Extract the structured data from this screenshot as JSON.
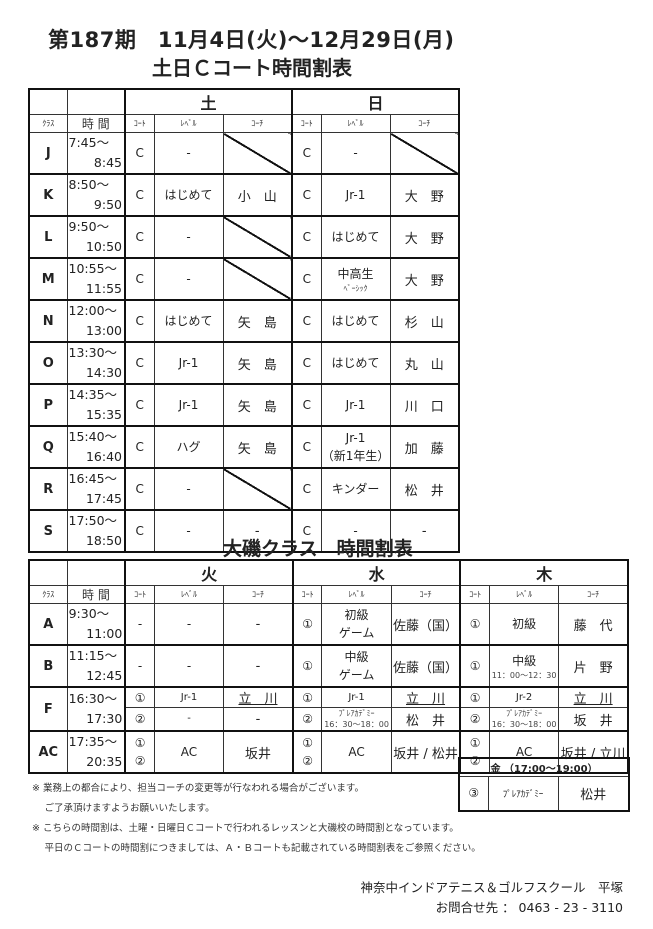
{
  "title": {
    "line1": "第187期　11月4日(火)～12月29日(月)",
    "line2": "土日Ｃコート時間割表",
    "line3": "大磯クラス　時間割表"
  },
  "subheaders": {
    "class": "ｸﾗｽ",
    "time": "時 間",
    "court": "ｺｰﾄ",
    "level": "ﾚﾍﾞﾙ",
    "coach": "ｺｰﾁ"
  },
  "weekend_table": {
    "days": [
      "土",
      "日"
    ],
    "rows": [
      {
        "cls": "J",
        "t1": "7:45～",
        "t2": "8:45",
        "days": [
          {
            "court": "C",
            "level": "-",
            "coach": null
          },
          {
            "court": "C",
            "level": "-",
            "coach": null
          }
        ]
      },
      {
        "cls": "K",
        "t1": "8:50～",
        "t2": "9:50",
        "days": [
          {
            "court": "C",
            "level": "はじめて",
            "coach": "小　山"
          },
          {
            "court": "C",
            "level": "Jr-1",
            "coach": "大　野"
          }
        ]
      },
      {
        "cls": "L",
        "t1": "9:50～",
        "t2": "10:50",
        "days": [
          {
            "court": "C",
            "level": "-",
            "coach": null
          },
          {
            "court": "C",
            "level": "はじめて",
            "coach": "大　野"
          }
        ]
      },
      {
        "cls": "M",
        "t1": "10:55～",
        "t2": "11:55",
        "days": [
          {
            "court": "C",
            "level": "-",
            "coach": null
          },
          {
            "court": "C",
            "level": "中高生",
            "level_note": "ﾍﾞｰｼｯｸ",
            "coach": "大　野"
          }
        ]
      },
      {
        "cls": "N",
        "t1": "12:00～",
        "t2": "13:00",
        "days": [
          {
            "court": "C",
            "level": "はじめて",
            "coach": "矢　島"
          },
          {
            "court": "C",
            "level": "はじめて",
            "coach": "杉　山"
          }
        ]
      },
      {
        "cls": "O",
        "t1": "13:30～",
        "t2": "14:30",
        "days": [
          {
            "court": "C",
            "level": "Jr-1",
            "coach": "矢　島"
          },
          {
            "court": "C",
            "level": "はじめて",
            "coach": "丸　山"
          }
        ]
      },
      {
        "cls": "P",
        "t1": "14:35～",
        "t2": "15:35",
        "days": [
          {
            "court": "C",
            "level": "Jr-1",
            "coach": "矢　島"
          },
          {
            "court": "C",
            "level": "Jr-1",
            "coach": "川　口"
          }
        ]
      },
      {
        "cls": "Q",
        "t1": "15:40～",
        "t2": "16:40",
        "days": [
          {
            "court": "C",
            "level": "ハグ",
            "coach": "矢　島"
          },
          {
            "court": "C",
            "level": "Jr-1",
            "level_line2": "（新1年生）",
            "coach": "加　藤"
          }
        ]
      },
      {
        "cls": "R",
        "t1": "16:45～",
        "t2": "17:45",
        "days": [
          {
            "court": "C",
            "level": "-",
            "coach": null
          },
          {
            "court": "C",
            "level": "キンダー",
            "coach": "松　井"
          }
        ]
      },
      {
        "cls": "S",
        "t1": "17:50～",
        "t2": "18:50",
        "days": [
          {
            "court": "C",
            "level": "-",
            "coach": "-"
          },
          {
            "court": "C",
            "level": "-",
            "coach": "-"
          }
        ]
      }
    ]
  },
  "oiso_table": {
    "days": [
      "火",
      "水",
      "木"
    ],
    "rows": [
      {
        "cls": "A",
        "t1": "9:30～",
        "t2": "11:00",
        "subs": [
          {
            "days": [
              {
                "court": "-",
                "level": "-",
                "coach": "-"
              },
              {
                "court": "①",
                "level": "初級",
                "level_line2": "ゲーム",
                "coach": "佐藤（国）"
              },
              {
                "court": "①",
                "level": "初級",
                "coach": "藤　代"
              }
            ]
          }
        ]
      },
      {
        "cls": "B",
        "t1": "11:15～",
        "t2": "12:45",
        "subs": [
          {
            "days": [
              {
                "court": "-",
                "level": "-",
                "coach": "-"
              },
              {
                "court": "①",
                "level": "中級",
                "level_line2": "ゲーム",
                "coach": "佐藤（国）"
              },
              {
                "court": "①",
                "level": "中級",
                "level_note": "11：00～12：30",
                "coach": "片　野"
              }
            ]
          }
        ]
      },
      {
        "cls": "F",
        "t1": "16:30～",
        "t2": "17:30",
        "subs": [
          {
            "days": [
              {
                "court": "①",
                "level": "Jr-1",
                "coach": "立　川",
                "coach_underline": true
              },
              {
                "court": "①",
                "level": "Jr-1",
                "coach": "立　川",
                "coach_underline": true
              },
              {
                "court": "①",
                "level": "Jr-2",
                "coach": "立　川",
                "coach_underline": true
              }
            ]
          },
          {
            "days": [
              {
                "court": "②",
                "level": "-",
                "coach": "-"
              },
              {
                "court": "②",
                "level_small": "ﾌﾟﾚｱｶﾃﾞﾐｰ",
                "level_note": "16：30～18：00",
                "coach": "松　井"
              },
              {
                "court": "②",
                "level_small": "ﾌﾟﾚｱｶﾃﾞﾐｰ",
                "level_note": "16：30～18：00",
                "coach": "坂　井"
              }
            ]
          }
        ]
      },
      {
        "cls": "AC",
        "t1": "17:35～",
        "t2": "20:35",
        "subs": [
          {
            "days": [
              {
                "court": "①",
                "court2": "②",
                "level": "AC",
                "coach": "坂井"
              },
              {
                "court": "①",
                "court2": "②",
                "level": "AC",
                "coach": "坂井 / 松井"
              },
              {
                "court": "①",
                "court2": "②",
                "level": "AC",
                "coach": "坂井 / 立川"
              }
            ]
          }
        ]
      }
    ]
  },
  "friday": {
    "header": "金 （17:00～19:00）",
    "court": "③",
    "level": "ﾌﾟﾚｱｶﾃﾞﾐｰ",
    "coach": "松井"
  },
  "notes": [
    "※ 業務上の都合により、担当コーチの変更等が行なわれる場合がございます。",
    "　 ご了承頂けますようお願いいたします。",
    "※ こちらの時間割は、土曜・日曜日Ｃコートで行われるレッスンと大磯校の時間割となっています。",
    "　 平日のＣコートの時間割につきましては、Ａ・Ｂコートも記載されている時間割表をご参照ください。"
  ],
  "footer": {
    "school": "神奈中インドアテニス＆ゴルフスクール　平塚",
    "contact": "お問合せ先 ： 0463 - 23 - 3110"
  }
}
